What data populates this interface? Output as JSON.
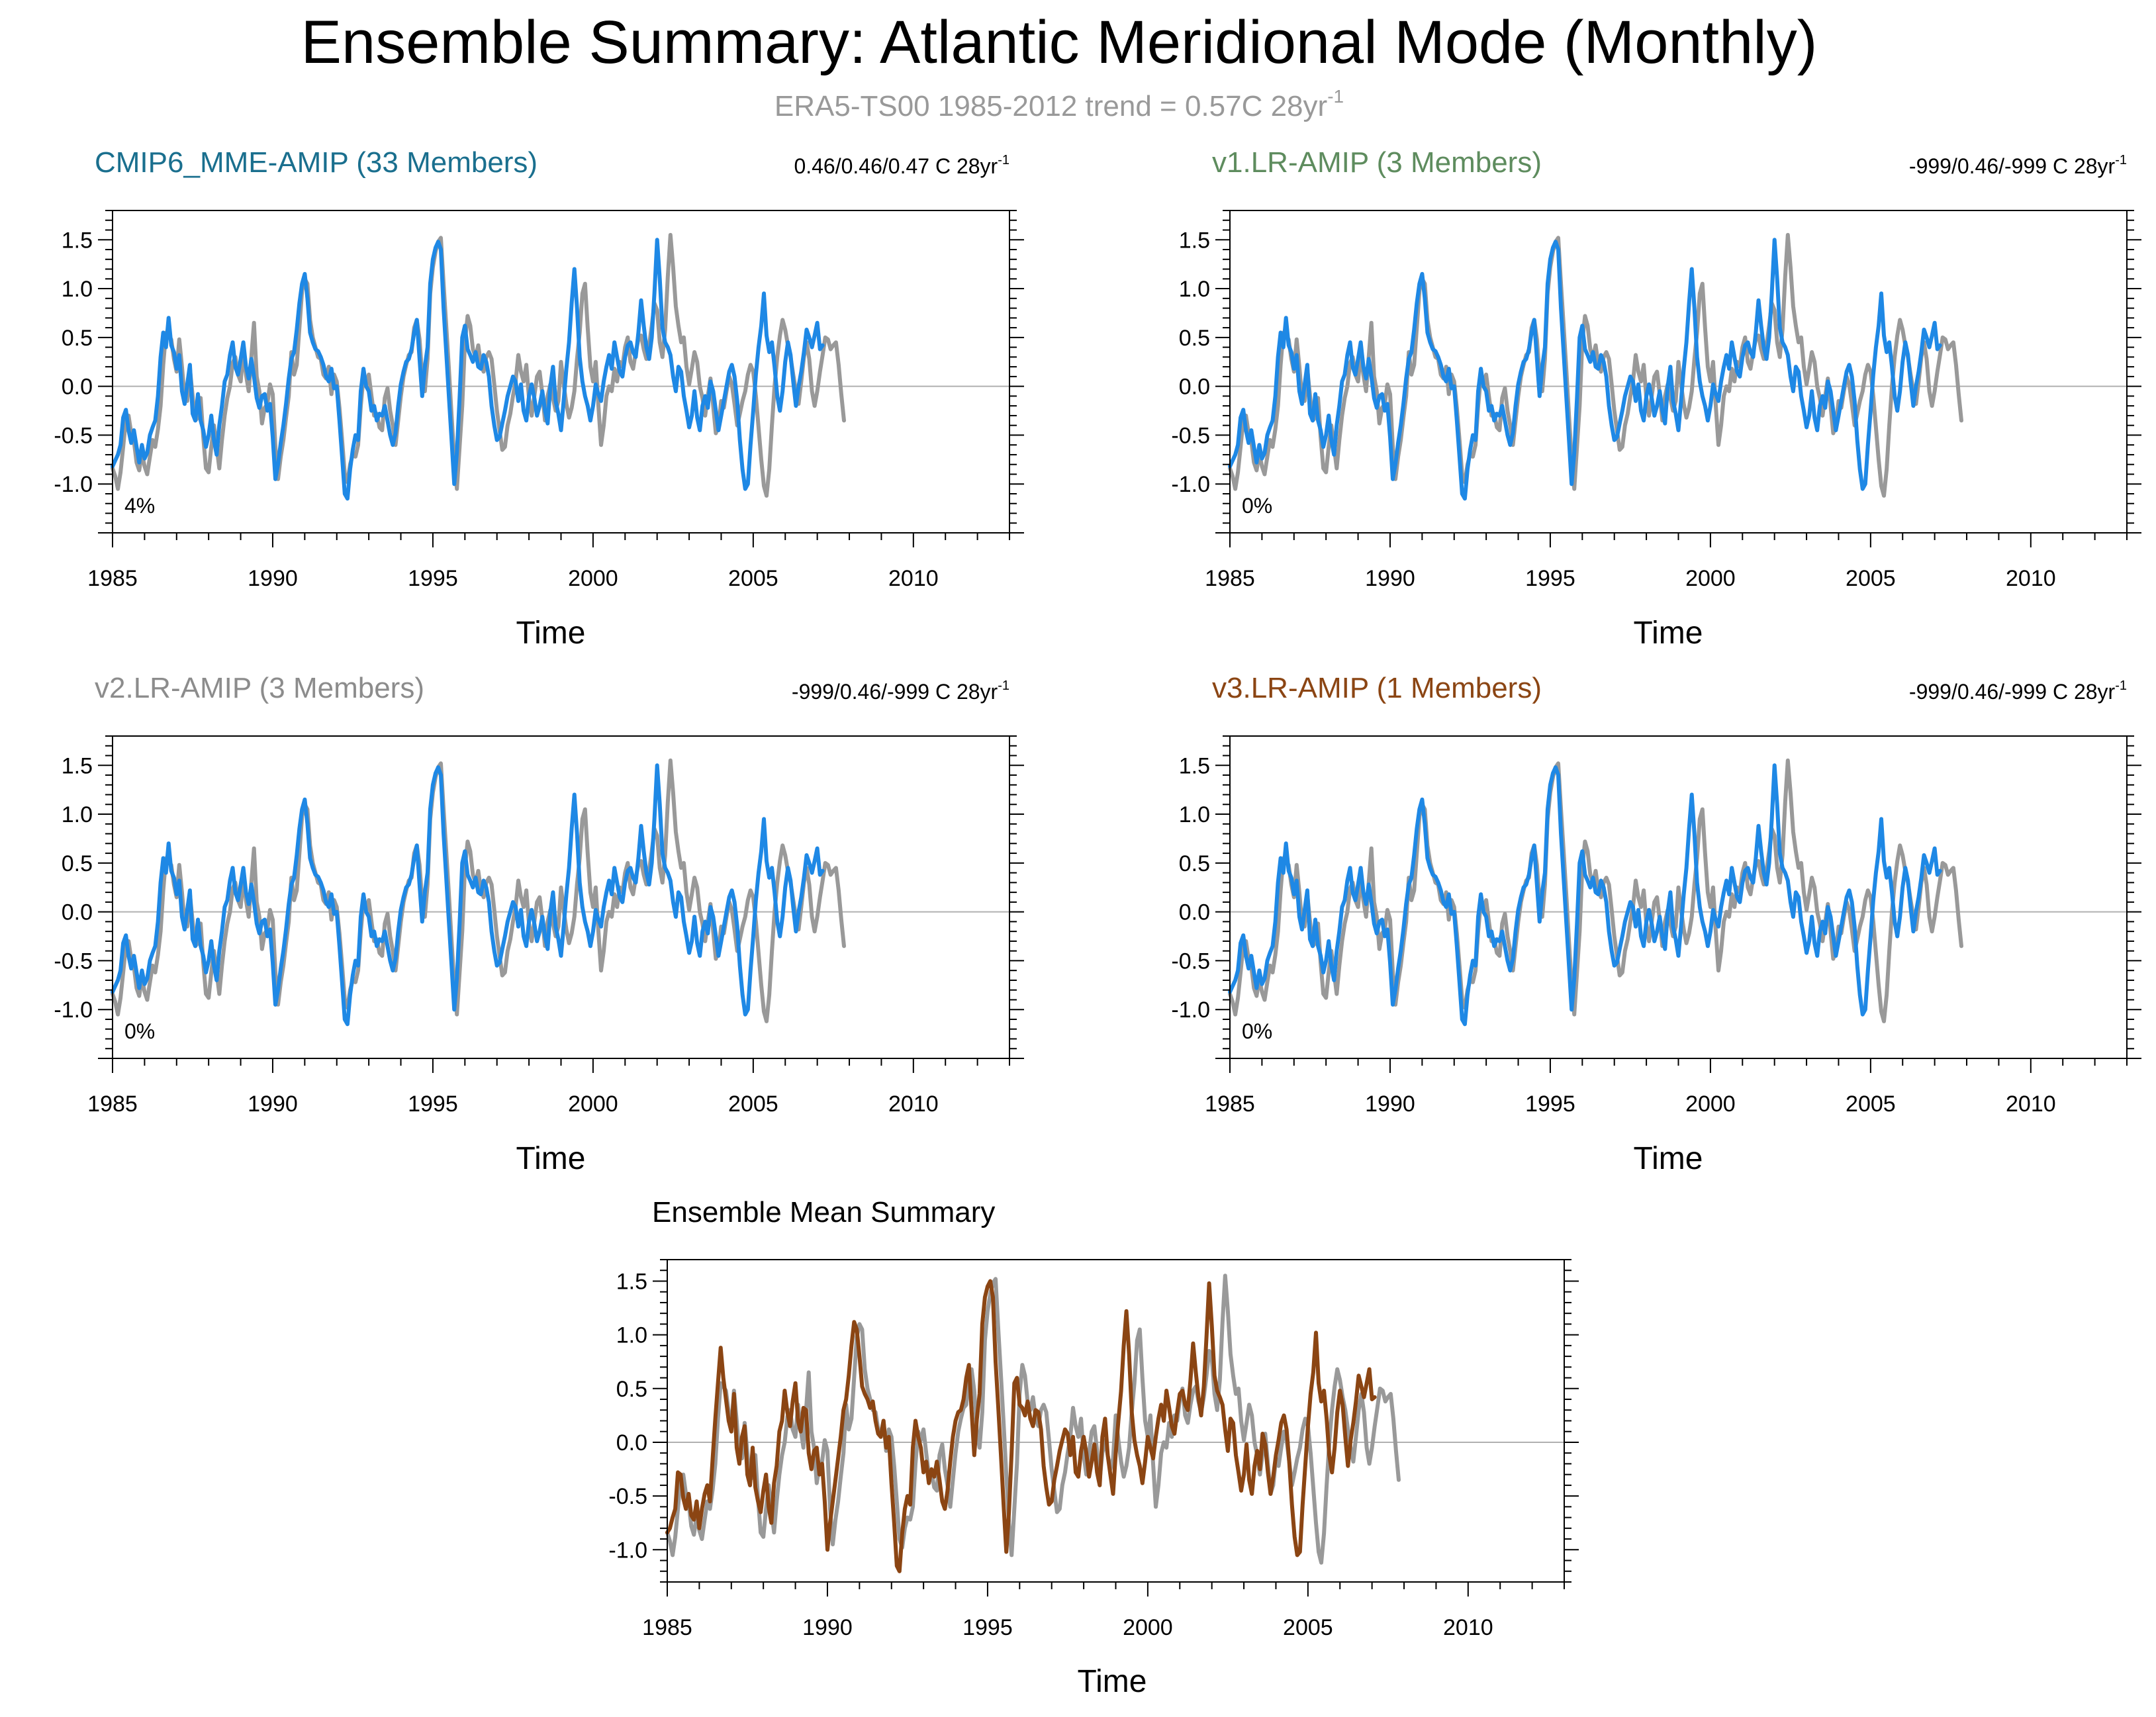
{
  "figure": {
    "title": "Ensemble Summary: Atlantic Meridional Mode (Monthly)",
    "subtitle": "ERA5-TS00 1985-2012 trend = 0.57C 28yr",
    "subtitle_sup": "-1"
  },
  "colors": {
    "observation": "#999999",
    "member": "#1e88e5",
    "ensemble_mean": "#8b4513",
    "cmip6_title": "#1a6f8e",
    "v1_title": "#5e8c5e",
    "v2_title": "#8c8c8c",
    "v3_title": "#8b4513",
    "axis": "#000000",
    "zero_line": "#b0b0b0"
  },
  "chart_data": [
    {
      "type": "line",
      "id": "cmip6",
      "title": "CMIP6_MME-AMIP (33 Members)",
      "stats": "0.46/0.46/0.47 C 28yr",
      "stats_sup": "-1",
      "percent_label": "4%",
      "xlabel": "Time",
      "ylabel": "",
      "xlim": [
        1985,
        2013
      ],
      "ylim": [
        -1.5,
        1.8
      ],
      "xticks": [
        1985,
        1990,
        1995,
        2000,
        2005,
        2010
      ],
      "xtick_labels": [
        "1985",
        "1990",
        "1995",
        "2000",
        "2005",
        "2010"
      ],
      "yticks": [
        -1.0,
        -0.5,
        0.0,
        0.5,
        1.0,
        1.5
      ],
      "ytick_labels": [
        "-1.0",
        "-0.5",
        "0.0",
        "0.5",
        "1.0",
        "1.5"
      ],
      "series": [
        {
          "name": "ERA5-TS00 observation",
          "role": "observation"
        },
        {
          "name": "CMIP6_MME-AMIP",
          "role": "member"
        }
      ]
    },
    {
      "type": "line",
      "id": "v1",
      "title": "v1.LR-AMIP (3 Members)",
      "stats": "-999/0.46/-999 C 28yr",
      "stats_sup": "-1",
      "percent_label": "0%",
      "xlabel": "Time",
      "ylabel": "",
      "xlim": [
        1985,
        2013
      ],
      "ylim": [
        -1.5,
        1.8
      ],
      "xticks": [
        1985,
        1990,
        1995,
        2000,
        2005,
        2010
      ],
      "xtick_labels": [
        "1985",
        "1990",
        "1995",
        "2000",
        "2005",
        "2010"
      ],
      "yticks": [
        -1.0,
        -0.5,
        0.0,
        0.5,
        1.0,
        1.5
      ],
      "ytick_labels": [
        "-1.0",
        "-0.5",
        "0.0",
        "0.5",
        "1.0",
        "1.5"
      ],
      "series": [
        {
          "name": "ERA5-TS00 observation",
          "role": "observation"
        },
        {
          "name": "v1.LR-AMIP",
          "role": "member"
        }
      ]
    },
    {
      "type": "line",
      "id": "v2",
      "title": "v2.LR-AMIP (3 Members)",
      "stats": "-999/0.46/-999 C 28yr",
      "stats_sup": "-1",
      "percent_label": "0%",
      "xlabel": "Time",
      "ylabel": "",
      "xlim": [
        1985,
        2013
      ],
      "ylim": [
        -1.5,
        1.8
      ],
      "xticks": [
        1985,
        1990,
        1995,
        2000,
        2005,
        2010
      ],
      "xtick_labels": [
        "1985",
        "1990",
        "1995",
        "2000",
        "2005",
        "2010"
      ],
      "yticks": [
        -1.0,
        -0.5,
        0.0,
        0.5,
        1.0,
        1.5
      ],
      "ytick_labels": [
        "-1.0",
        "-0.5",
        "0.0",
        "0.5",
        "1.0",
        "1.5"
      ],
      "series": [
        {
          "name": "ERA5-TS00 observation",
          "role": "observation"
        },
        {
          "name": "v2.LR-AMIP",
          "role": "member"
        }
      ]
    },
    {
      "type": "line",
      "id": "v3",
      "title": "v3.LR-AMIP (1 Members)",
      "stats": "-999/0.46/-999 C 28yr",
      "stats_sup": "-1",
      "percent_label": "0%",
      "xlabel": "Time",
      "ylabel": "",
      "xlim": [
        1985,
        2013
      ],
      "ylim": [
        -1.5,
        1.8
      ],
      "xticks": [
        1985,
        1990,
        1995,
        2000,
        2005,
        2010
      ],
      "xtick_labels": [
        "1985",
        "1990",
        "1995",
        "2000",
        "2005",
        "2010"
      ],
      "yticks": [
        -1.0,
        -0.5,
        0.0,
        0.5,
        1.0,
        1.5
      ],
      "ytick_labels": [
        "-1.0",
        "-0.5",
        "0.0",
        "0.5",
        "1.0",
        "1.5"
      ],
      "series": [
        {
          "name": "ERA5-TS00 observation",
          "role": "observation"
        },
        {
          "name": "v3.LR-AMIP",
          "role": "member"
        }
      ]
    },
    {
      "type": "line",
      "id": "mean",
      "title": "Ensemble Mean Summary",
      "xlabel": "Time",
      "ylabel": "",
      "xlim": [
        1985,
        2013
      ],
      "ylim": [
        -1.3,
        1.7
      ],
      "xticks": [
        1985,
        1990,
        1995,
        2000,
        2005,
        2010
      ],
      "xtick_labels": [
        "1985",
        "1990",
        "1995",
        "2000",
        "2005",
        "2010"
      ],
      "yticks": [
        -1.0,
        -0.5,
        0.0,
        0.5,
        1.0,
        1.5
      ],
      "ytick_labels": [
        "-1.0",
        "-0.5",
        "0.0",
        "0.5",
        "1.0",
        "1.5"
      ],
      "series": [
        {
          "name": "ERA5-TS00 observation",
          "role": "observation"
        },
        {
          "name": "Ensemble mean",
          "role": "ensemble_mean"
        }
      ]
    }
  ],
  "series_values": {
    "x_start": 1985.0,
    "x_step": 0.0833333,
    "observation": [
      -0.84,
      -0.92,
      -1.05,
      -0.88,
      -0.62,
      -0.34,
      -0.3,
      -0.48,
      -0.56,
      -0.78,
      -0.86,
      -0.68,
      -0.82,
      -0.9,
      -0.72,
      -0.55,
      -0.62,
      -0.44,
      -0.2,
      0.22,
      0.55,
      0.52,
      0.48,
      0.28,
      0.15,
      0.48,
      0.2,
      -0.12,
      -0.15,
      0.18,
      -0.1,
      -0.35,
      -0.32,
      -0.12,
      -0.52,
      -0.84,
      -0.88,
      -0.62,
      -0.4,
      -0.62,
      -0.84,
      -0.55,
      -0.3,
      -0.12,
      0.0,
      0.24,
      0.3,
      0.12,
      0.05,
      0.35,
      0.12,
      -0.05,
      0.3,
      0.65,
      0.1,
      -0.05,
      -0.38,
      -0.22,
      -0.18,
      0.02,
      -0.08,
      -0.62,
      -0.95,
      -0.72,
      -0.55,
      -0.32,
      -0.1,
      0.35,
      0.12,
      0.22,
      0.6,
      0.98,
      1.1,
      1.05,
      0.68,
      0.5,
      0.4,
      0.3,
      0.28,
      0.12,
      0.08,
      0.2,
      -0.08,
      0.12,
      0.05,
      -0.22,
      -0.55,
      -0.9,
      -0.98,
      -0.8,
      -0.7,
      -0.72,
      -0.6,
      -0.2,
      0.1,
      0.02,
      0.12,
      -0.1,
      -0.3,
      -0.28,
      -0.42,
      -0.45,
      -0.12,
      -0.02,
      -0.25,
      -0.4,
      -0.6,
      -0.35,
      -0.1,
      0.1,
      0.22,
      0.32,
      0.35,
      0.6,
      0.68,
      0.48,
      0.1,
      -0.05,
      0.28,
      0.95,
      1.22,
      1.38,
      1.48,
      1.52,
      1.05,
      0.62,
      0.18,
      -0.3,
      -0.75,
      -1.05,
      -0.62,
      -0.2,
      0.45,
      0.72,
      0.62,
      0.38,
      0.3,
      0.42,
      0.22,
      0.15,
      0.3,
      0.35,
      0.28,
      0.02,
      -0.25,
      -0.45,
      -0.65,
      -0.62,
      -0.4,
      -0.28,
      -0.1,
      0.05,
      0.32,
      0.15,
      0.05,
      0.22,
      -0.12,
      -0.3,
      -0.1,
      0.1,
      0.15,
      -0.08,
      -0.35,
      -0.1,
      0.02,
      -0.12,
      -0.25,
      -0.15,
      0.25,
      0.02,
      -0.18,
      -0.32,
      -0.22,
      -0.05,
      0.28,
      0.55,
      0.95,
      1.05,
      0.6,
      0.2,
      0.05,
      0.25,
      -0.2,
      -0.6,
      -0.4,
      -0.1,
      0.0,
      -0.05,
      0.18,
      0.05,
      0.25,
      0.2,
      0.4,
      0.5,
      0.25,
      0.18,
      0.35,
      0.48,
      0.52,
      0.38,
      0.28,
      0.42,
      0.62,
      0.85,
      0.78,
      0.45,
      0.3,
      0.58,
      1.12,
      1.55,
      1.22,
      0.82,
      0.62,
      0.45,
      0.5,
      0.2,
      0.02,
      0.18,
      0.35,
      0.25,
      0.0,
      -0.12,
      -0.3,
      -0.1,
      0.08,
      -0.2,
      -0.48,
      -0.4,
      -0.15,
      -0.22,
      -0.05,
      0.1,
      0.02,
      -0.18,
      -0.4,
      -0.28,
      -0.15,
      -0.05,
      0.12,
      0.22,
      0.15,
      -0.1,
      -0.42,
      -0.75,
      -1.02,
      -1.12,
      -0.85,
      -0.4,
      0.0,
      0.3,
      0.52,
      0.68,
      0.58,
      0.42,
      0.3,
      0.12,
      -0.05,
      -0.18,
      0.05,
      0.3,
      0.45,
      0.28,
      -0.05,
      -0.2,
      -0.05,
      0.15,
      0.32,
      0.5,
      0.48,
      0.38,
      0.42,
      0.45,
      0.22,
      -0.08,
      -0.35
    ],
    "member": [
      -0.82,
      -0.76,
      -0.7,
      -0.6,
      -0.32,
      -0.24,
      -0.45,
      -0.58,
      -0.45,
      -0.62,
      -0.78,
      -0.6,
      -0.74,
      -0.68,
      -0.5,
      -0.42,
      -0.35,
      -0.1,
      0.3,
      0.55,
      0.4,
      0.7,
      0.42,
      0.35,
      0.18,
      0.32,
      -0.05,
      -0.18,
      0.02,
      0.22,
      -0.28,
      -0.35,
      -0.08,
      -0.35,
      -0.45,
      -0.62,
      -0.5,
      -0.3,
      -0.55,
      -0.7,
      -0.4,
      -0.2,
      0.05,
      0.12,
      0.32,
      0.45,
      0.2,
      0.12,
      0.28,
      0.45,
      0.2,
      0.08,
      0.28,
      0.1,
      -0.12,
      -0.22,
      -0.1,
      -0.08,
      -0.25,
      -0.18,
      -0.52,
      -0.95,
      -0.8,
      -0.58,
      -0.4,
      -0.18,
      0.08,
      0.28,
      0.35,
      0.58,
      0.85,
      1.05,
      1.15,
      0.9,
      0.55,
      0.45,
      0.38,
      0.36,
      0.3,
      0.22,
      0.1,
      0.05,
      0.18,
      -0.02,
      0.0,
      -0.35,
      -0.72,
      -1.1,
      -1.15,
      -0.85,
      -0.65,
      -0.5,
      -0.55,
      -0.05,
      0.18,
      0.0,
      -0.05,
      -0.25,
      -0.2,
      -0.35,
      -0.28,
      -0.3,
      -0.2,
      -0.35,
      -0.5,
      -0.6,
      -0.48,
      -0.2,
      0.02,
      0.15,
      0.25,
      0.28,
      0.38,
      0.55,
      0.68,
      0.28,
      -0.1,
      0.2,
      0.4,
      1.05,
      1.3,
      1.42,
      1.48,
      1.4,
      0.8,
      0.35,
      -0.1,
      -0.55,
      -1.0,
      -0.68,
      -0.12,
      0.5,
      0.62,
      0.38,
      0.32,
      0.25,
      0.35,
      0.2,
      0.18,
      0.32,
      0.25,
      0.1,
      -0.2,
      -0.4,
      -0.55,
      -0.52,
      -0.38,
      -0.25,
      -0.1,
      0.0,
      0.1,
      0.05,
      -0.15,
      0.02,
      -0.25,
      -0.35,
      -0.1,
      0.02,
      -0.12,
      -0.3,
      -0.2,
      -0.05,
      -0.25,
      -0.38,
      0.0,
      0.2,
      -0.15,
      -0.28,
      -0.45,
      -0.15,
      0.18,
      0.45,
      0.85,
      1.2,
      0.8,
      0.3,
      0.05,
      -0.1,
      -0.2,
      -0.35,
      -0.2,
      0.02,
      -0.08,
      -0.15,
      0.05,
      0.2,
      0.32,
      0.18,
      0.45,
      0.3,
      0.15,
      0.1,
      0.3,
      0.42,
      0.45,
      0.35,
      0.3,
      0.55,
      0.88,
      0.62,
      0.4,
      0.28,
      0.5,
      0.95,
      1.5,
      1.1,
      0.6,
      0.45,
      0.4,
      0.32,
      0.1,
      -0.05,
      0.2,
      0.15,
      -0.1,
      -0.25,
      -0.42,
      -0.3,
      -0.05,
      -0.32,
      -0.45,
      -0.2,
      -0.1,
      -0.22,
      0.05,
      -0.05,
      -0.25,
      -0.45,
      -0.3,
      -0.15,
      0.0,
      0.15,
      0.22,
      0.1,
      -0.15,
      -0.55,
      -0.85,
      -1.05,
      -1.0,
      -0.6,
      -0.25,
      0.12,
      0.4,
      0.62,
      0.95,
      0.52,
      0.35,
      0.45,
      0.2,
      -0.1,
      -0.25,
      -0.05,
      0.25,
      0.45,
      0.32,
      0.05,
      -0.2,
      0.0,
      0.15,
      0.35,
      0.58,
      0.5,
      0.4,
      0.52,
      0.65,
      0.38,
      0.42
    ],
    "ensemble_mean": [
      -0.84,
      -0.8,
      -0.7,
      -0.62,
      -0.28,
      -0.3,
      -0.52,
      -0.62,
      -0.48,
      -0.68,
      -0.72,
      -0.55,
      -0.8,
      -0.62,
      -0.48,
      -0.4,
      -0.55,
      -0.15,
      0.22,
      0.55,
      0.88,
      0.6,
      0.4,
      0.2,
      0.1,
      0.45,
      -0.05,
      -0.2,
      0.05,
      0.15,
      -0.3,
      -0.4,
      -0.05,
      -0.42,
      -0.55,
      -0.65,
      -0.45,
      -0.3,
      -0.6,
      -0.75,
      -0.38,
      -0.22,
      0.1,
      0.2,
      0.48,
      0.28,
      0.15,
      0.38,
      0.55,
      0.2,
      0.1,
      0.32,
      0.3,
      -0.1,
      -0.25,
      -0.08,
      -0.05,
      -0.3,
      -0.2,
      -0.55,
      -1.0,
      -0.75,
      -0.55,
      -0.35,
      -0.15,
      0.05,
      0.3,
      0.4,
      0.62,
      0.9,
      1.12,
      1.05,
      0.8,
      0.52,
      0.45,
      0.4,
      0.32,
      0.38,
      0.2,
      0.08,
      0.05,
      0.2,
      -0.05,
      0.05,
      -0.38,
      -0.75,
      -1.15,
      -1.2,
      -0.85,
      -0.62,
      -0.5,
      -0.58,
      -0.05,
      0.2,
      0.05,
      -0.05,
      -0.28,
      -0.18,
      -0.38,
      -0.25,
      -0.32,
      -0.18,
      -0.35,
      -0.55,
      -0.62,
      -0.45,
      -0.18,
      0.05,
      0.2,
      0.28,
      0.3,
      0.4,
      0.6,
      0.72,
      0.3,
      -0.12,
      0.22,
      0.45,
      1.1,
      1.35,
      1.45,
      1.5,
      1.35,
      0.75,
      0.32,
      -0.12,
      -0.58,
      -1.02,
      -0.65,
      -0.1,
      0.55,
      0.6,
      0.35,
      0.32,
      0.25,
      0.38,
      0.22,
      0.15,
      0.3,
      0.28,
      0.12,
      -0.22,
      -0.42,
      -0.58,
      -0.55,
      -0.35,
      -0.22,
      -0.08,
      0.02,
      0.12,
      0.08,
      -0.12,
      0.05,
      -0.28,
      -0.32,
      -0.08,
      0.05,
      -0.1,
      -0.32,
      -0.18,
      -0.02,
      -0.28,
      -0.4,
      0.05,
      0.22,
      -0.12,
      -0.3,
      -0.48,
      -0.1,
      0.2,
      0.48,
      0.9,
      1.22,
      0.82,
      0.28,
      0.02,
      -0.12,
      -0.22,
      -0.38,
      -0.18,
      0.05,
      -0.05,
      -0.15,
      0.05,
      0.22,
      0.35,
      0.2,
      0.48,
      0.32,
      0.15,
      0.08,
      0.28,
      0.45,
      0.48,
      0.35,
      0.3,
      0.58,
      0.92,
      0.65,
      0.42,
      0.25,
      0.52,
      0.98,
      1.48,
      1.08,
      0.62,
      0.48,
      0.42,
      0.35,
      0.12,
      -0.08,
      0.22,
      0.18,
      -0.12,
      -0.28,
      -0.45,
      -0.3,
      -0.02,
      -0.35,
      -0.48,
      -0.22,
      -0.08,
      -0.25,
      0.08,
      -0.02,
      -0.28,
      -0.48,
      -0.32,
      -0.12,
      0.02,
      0.18,
      0.25,
      0.12,
      -0.18,
      -0.58,
      -0.88,
      -1.05,
      -1.02,
      -0.58,
      -0.22,
      0.15,
      0.45,
      0.65,
      1.02,
      0.55,
      0.38,
      0.48,
      0.22,
      -0.12,
      -0.28,
      -0.05,
      0.28,
      0.48,
      0.35,
      0.05,
      -0.22,
      0.02,
      0.18,
      0.38,
      0.62,
      0.52,
      0.42,
      0.55,
      0.68,
      0.4,
      0.42
    ]
  }
}
